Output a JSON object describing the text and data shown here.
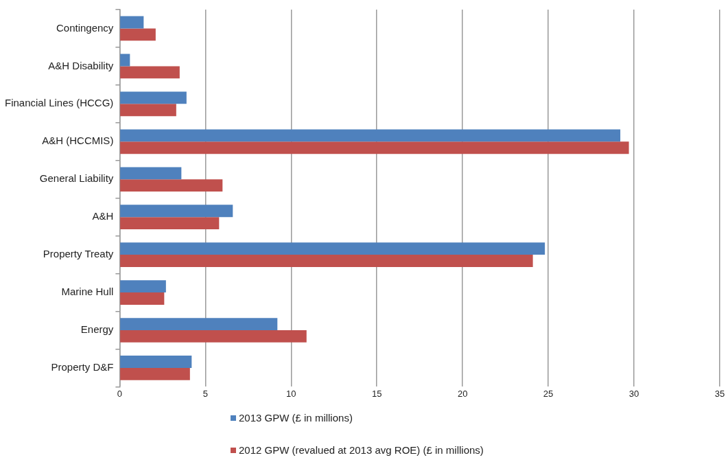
{
  "chart_data": {
    "type": "bar",
    "orientation": "horizontal",
    "categories": [
      "Contingency",
      "A&H Disability",
      "Financial Lines (HCCG)",
      "A&H (HCCMIS)",
      "General Liability",
      "A&H",
      "Property Treaty",
      "Marine Hull",
      "Energy",
      "Property D&F"
    ],
    "series": [
      {
        "name": "2013 GPW (£ in millions)",
        "color": "#4f81bd",
        "values": [
          1.4,
          0.6,
          3.9,
          29.2,
          3.6,
          6.6,
          24.8,
          2.7,
          9.2,
          4.2
        ]
      },
      {
        "name": "2012 GPW (revalued at 2013 avg ROE) (£ in millions)",
        "color": "#c0504d",
        "values": [
          2.1,
          3.5,
          3.3,
          29.7,
          6.0,
          5.8,
          24.1,
          2.6,
          10.9,
          4.1
        ]
      }
    ],
    "xlim": [
      0,
      35
    ],
    "xticks": [
      0,
      5,
      10,
      15,
      20,
      25,
      30,
      35
    ],
    "grid": "x",
    "legend": "bottom"
  }
}
